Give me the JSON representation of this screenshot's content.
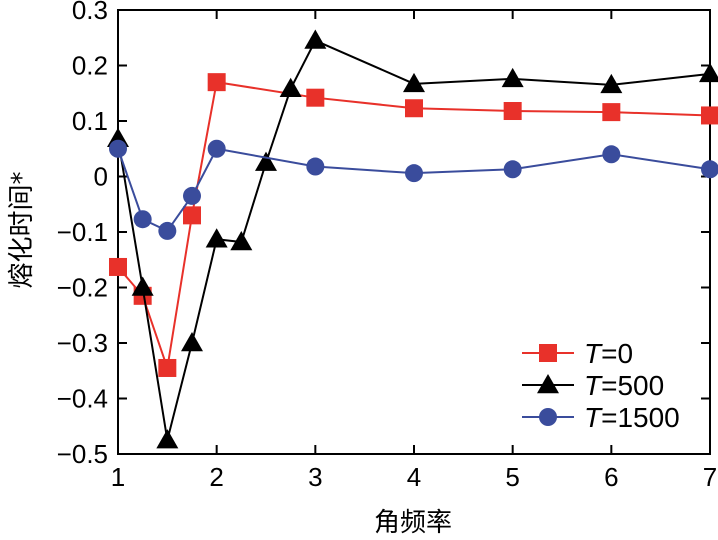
{
  "chart_data": {
    "type": "line",
    "title": "",
    "xlabel": "角频率",
    "ylabel": "熔化时间*",
    "xlim": [
      1,
      7
    ],
    "ylim": [
      -0.5,
      0.3
    ],
    "xticks": [
      1,
      2,
      3,
      4,
      5,
      6,
      7
    ],
    "xtick_labels": [
      "1",
      "2",
      "3",
      "4",
      "5",
      "6",
      "7"
    ],
    "yticks": [
      0.3,
      0.2,
      0.1,
      0,
      -0.1,
      -0.2,
      -0.3,
      -0.4,
      -0.5
    ],
    "ytick_labels": [
      "0.3",
      "0.2",
      "0.1",
      "0",
      "−0.1",
      "−0.2",
      "−0.3",
      "−0.4",
      "−0.5"
    ],
    "grid": false,
    "legend_position": "bottom-right",
    "series": [
      {
        "name": "T=0",
        "name_italic": "T",
        "name_rest": "=0",
        "color": "#e8312a",
        "marker": "square",
        "x": [
          1,
          1.25,
          1.5,
          1.75,
          2,
          3,
          4,
          5,
          6,
          7
        ],
        "values": [
          -0.163,
          -0.215,
          -0.345,
          -0.07,
          0.17,
          0.142,
          0.123,
          0.118,
          0.116,
          0.11
        ]
      },
      {
        "name": "T=500",
        "name_italic": "T",
        "name_rest": "=500",
        "color": "#000000",
        "marker": "triangle",
        "x": [
          1,
          1.25,
          1.5,
          1.75,
          2,
          2.25,
          2.5,
          2.75,
          3,
          4,
          5,
          6,
          7
        ],
        "values": [
          0.068,
          -0.2,
          -0.475,
          -0.3,
          -0.113,
          -0.118,
          0.025,
          0.158,
          0.245,
          0.167,
          0.176,
          0.165,
          0.185
        ]
      },
      {
        "name": "T=1500",
        "name_italic": "T",
        "name_rest": "=1500",
        "color": "#3a4c9c",
        "marker": "circle",
        "x": [
          1,
          1.25,
          1.5,
          1.75,
          2,
          3,
          4,
          5,
          6,
          7
        ],
        "values": [
          0.05,
          -0.077,
          -0.098,
          -0.035,
          0.05,
          0.018,
          0.006,
          0.013,
          0.04,
          0.013
        ]
      }
    ]
  }
}
